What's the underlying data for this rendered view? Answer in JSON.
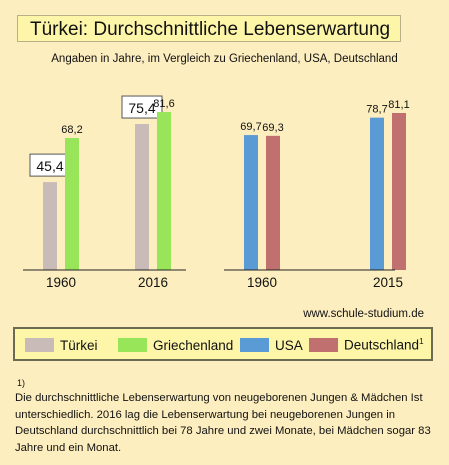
{
  "title": "Türkei: Durchschnittliche Lebenserwartung",
  "subtitle": "Angaben in Jahre, im Vergleich zu Griechenland, USA, Deutschland",
  "watermark": "www.schule-studium.de",
  "website": "www.schule-studium.de",
  "legend": [
    {
      "label": "Türkei",
      "color": "#c9bbb8"
    },
    {
      "label": "Griechenland",
      "color": "#98e55a"
    },
    {
      "label": "USA",
      "color": "#5b9bd5"
    },
    {
      "label": "Deutschland",
      "sup": "1",
      "color": "#c0706f"
    }
  ],
  "footnote_mark": "1)",
  "footnote": "Die durchschnittliche Lebenserwartung von neugeborenen Jungen & Mädchen Ist  unterschiedlich. 2016 lag die Lebenserwartung bei neugeborenen Jungen in Deutschland durchschnittlich bei 78  Jahre und zwei Monate, bei Mädchen sogar 83 Jahre und ein Monat.",
  "chart_data": [
    {
      "type": "bar",
      "categories": [
        "1960",
        "2016"
      ],
      "series": [
        {
          "name": "Türkei",
          "values": [
            45.4,
            75.4
          ],
          "labels": [
            "45,4",
            "75,4"
          ],
          "color": "#c9bbb8"
        },
        {
          "name": "Griechenland",
          "values": [
            68.2,
            81.6
          ],
          "labels": [
            "68,2",
            "81,6"
          ],
          "color": "#98e55a"
        }
      ]
    },
    {
      "type": "bar",
      "categories": [
        "1960",
        "2015"
      ],
      "series": [
        {
          "name": "USA",
          "values": [
            69.7,
            78.7
          ],
          "labels": [
            "69,7",
            "78,7"
          ],
          "color": "#5b9bd5"
        },
        {
          "name": "Deutschland",
          "values": [
            69.3,
            81.1
          ],
          "labels": [
            "69,3",
            "81,1"
          ],
          "color": "#c0706f"
        }
      ]
    }
  ]
}
